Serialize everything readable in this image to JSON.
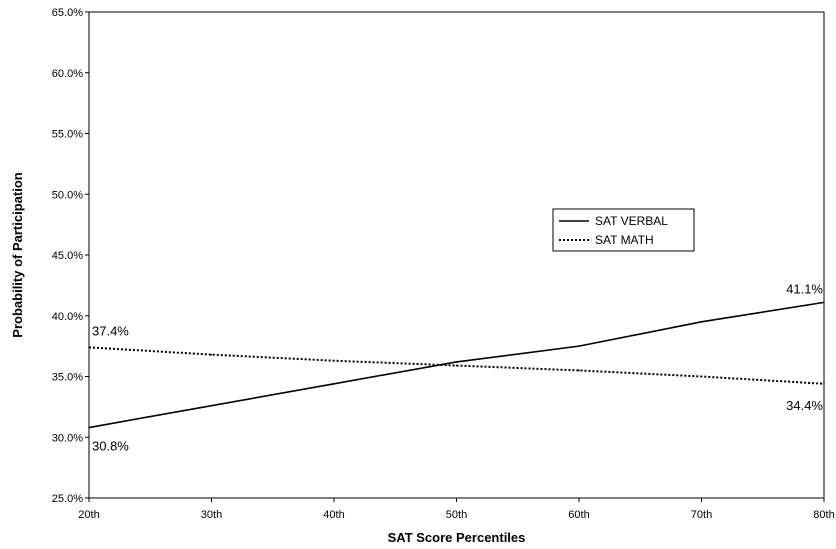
{
  "chart_data": {
    "type": "line",
    "title": "",
    "xlabel": "SAT Score Percentiles",
    "ylabel": "Probability of Participation",
    "categories": [
      "20th",
      "30th",
      "40th",
      "50th",
      "60th",
      "70th",
      "80th"
    ],
    "ylim": [
      25.0,
      65.0
    ],
    "yticks": [
      "25.0%",
      "30.0%",
      "35.0%",
      "40.0%",
      "45.0%",
      "50.0%",
      "55.0%",
      "60.0%",
      "65.0%"
    ],
    "grid": false,
    "legend_position": "center-right",
    "series": [
      {
        "name": "SAT VERBAL",
        "style": "solid",
        "color": "#000000",
        "values": [
          30.8,
          32.6,
          34.4,
          36.2,
          37.5,
          39.5,
          41.1
        ]
      },
      {
        "name": "SAT MATH",
        "style": "dotted",
        "color": "#000000",
        "values": [
          37.4,
          36.8,
          36.3,
          35.9,
          35.5,
          35.0,
          34.4
        ]
      }
    ],
    "annotations": [
      {
        "text": "37.4%",
        "series": "SAT MATH",
        "category": "20th",
        "placement": "above-right"
      },
      {
        "text": "30.8%",
        "series": "SAT VERBAL",
        "category": "20th",
        "placement": "below-right"
      },
      {
        "text": "41.1%",
        "series": "SAT VERBAL",
        "category": "80th",
        "placement": "above-left"
      },
      {
        "text": "34.4%",
        "series": "SAT MATH",
        "category": "80th",
        "placement": "below-left"
      }
    ]
  }
}
